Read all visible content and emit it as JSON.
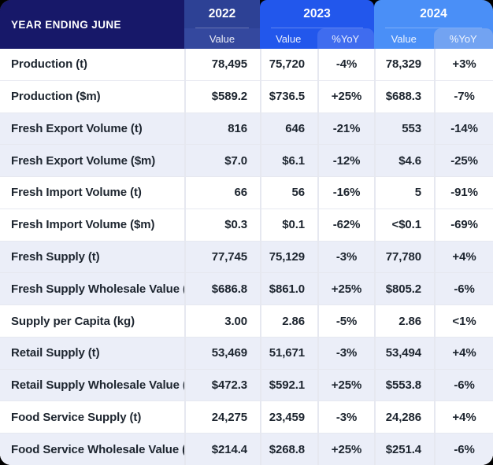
{
  "header": {
    "row_label": "YEAR ENDING JUNE",
    "years": [
      {
        "label": "2022",
        "columns": [
          "Value"
        ]
      },
      {
        "label": "2023",
        "columns": [
          "Value",
          "%YoY"
        ]
      },
      {
        "label": "2024",
        "columns": [
          "Value",
          "%YoY"
        ]
      }
    ]
  },
  "colors": {
    "corner": "#171869",
    "y2022": "#2d4195",
    "y2022sub": "#34489e",
    "y2023": "#2257ec",
    "y2023yoy": "#3f6cef",
    "y2024": "#4a8ff7",
    "y2024yoy": "#72a3f2",
    "shaded": "#ebeef8",
    "divider": "#e6e8f0",
    "text": "#1d252f"
  },
  "chart_data": {
    "type": "table",
    "title": "YEAR ENDING JUNE",
    "columns": [
      "Year Ending June",
      "2022 Value",
      "2023 Value",
      "2023 %YoY",
      "2024 Value",
      "2024 %YoY"
    ],
    "rows": [
      {
        "label": "Production (t)",
        "values": [
          "78,495",
          "75,720",
          "-4%",
          "78,329",
          "+3%"
        ],
        "shaded": false
      },
      {
        "label": "Production ($m)",
        "values": [
          "$589.2",
          "$736.5",
          "+25%",
          "$688.3",
          "-7%"
        ],
        "shaded": false
      },
      {
        "label": "Fresh Export Volume (t)",
        "values": [
          "816",
          "646",
          "-21%",
          "553",
          "-14%"
        ],
        "shaded": true
      },
      {
        "label": "Fresh Export Volume ($m)",
        "values": [
          "$7.0",
          "$6.1",
          "-12%",
          "$4.6",
          "-25%"
        ],
        "shaded": true
      },
      {
        "label": "Fresh Import Volume (t)",
        "values": [
          "66",
          "56",
          "-16%",
          "5",
          "-91%"
        ],
        "shaded": false
      },
      {
        "label": "Fresh Import Volume ($m)",
        "values": [
          "$0.3",
          "$0.1",
          "-62%",
          "<$0.1",
          "-69%"
        ],
        "shaded": false
      },
      {
        "label": "Fresh Supply (t)",
        "values": [
          "77,745",
          "75,129",
          "-3%",
          "77,780",
          "+4%"
        ],
        "shaded": true
      },
      {
        "label": "Fresh Supply Wholesale Value ($m)",
        "values": [
          "$686.8",
          "$861.0",
          "+25%",
          "$805.2",
          "-6%"
        ],
        "shaded": true
      },
      {
        "label": "Supply per Capita (kg)",
        "values": [
          "3.00",
          "2.86",
          "-5%",
          "2.86",
          "<1%"
        ],
        "shaded": false
      },
      {
        "label": "Retail Supply (t)",
        "values": [
          "53,469",
          "51,671",
          "-3%",
          "53,494",
          "+4%"
        ],
        "shaded": true
      },
      {
        "label": "Retail Supply Wholesale Value ($m)",
        "values": [
          "$472.3",
          "$592.1",
          "+25%",
          "$553.8",
          "-6%"
        ],
        "shaded": true
      },
      {
        "label": "Food Service Supply (t)",
        "values": [
          "24,275",
          "23,459",
          "-3%",
          "24,286",
          "+4%"
        ],
        "shaded": false
      },
      {
        "label": "Food Service Wholesale Value ($m)",
        "values": [
          "$214.4",
          "$268.8",
          "+25%",
          "$251.4",
          "-6%"
        ],
        "shaded": true
      }
    ]
  }
}
